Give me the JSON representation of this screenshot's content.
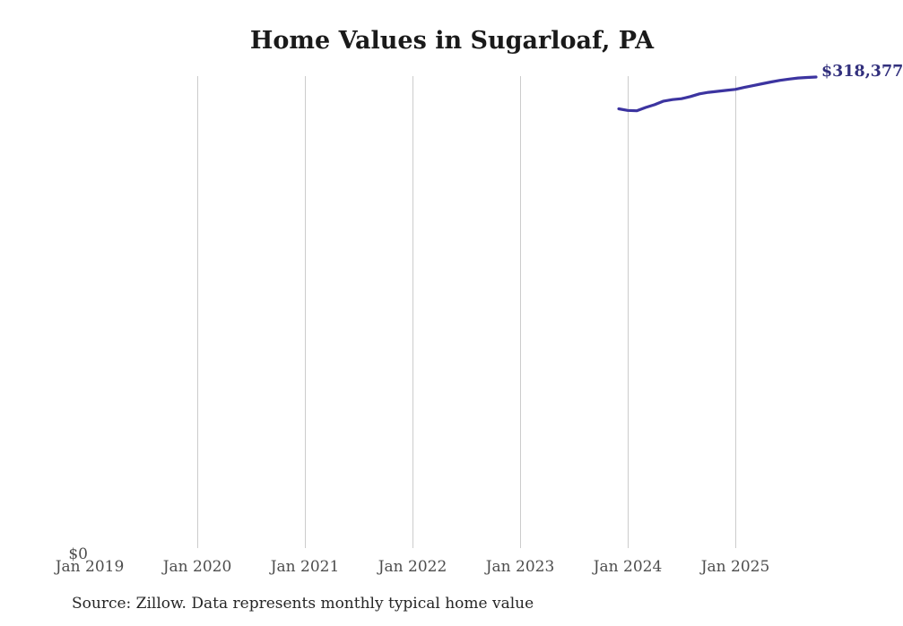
{
  "title": "Home Values in Sugarloaf, PA",
  "end_label": "$318,377",
  "y_axis": {
    "zero_label": "$0"
  },
  "x_axis": {
    "ticks": [
      "Jan 2019",
      "Jan 2020",
      "Jan 2021",
      "Jan 2022",
      "Jan 2023",
      "Jan 2024",
      "Jan 2025"
    ]
  },
  "source_note": "Source: Zillow. Data represents monthly typical home value",
  "colors": {
    "line": "#3c34a0",
    "value_label": "#32307d",
    "gridline": "#cccccc",
    "axis_text": "#4d4d4d",
    "title_text": "#1a1a1a",
    "source_text": "#262626"
  },
  "chart_data": {
    "type": "line",
    "title": "Home Values in Sugarloaf, PA",
    "xlabel": "",
    "ylabel": "",
    "x": [
      "Dec 2023",
      "Jan 2024",
      "Feb 2024",
      "Mar 2024",
      "Apr 2024",
      "May 2024",
      "Jun 2024",
      "Jul 2024",
      "Aug 2024",
      "Sep 2024",
      "Oct 2024",
      "Nov 2024",
      "Dec 2024",
      "Jan 2025",
      "Feb 2025",
      "Mar 2025",
      "Apr 2025",
      "May 2025",
      "Jun 2025",
      "Jul 2025",
      "Aug 2025",
      "Sep 2025",
      "Oct 2025"
    ],
    "values": [
      297300,
      296200,
      296000,
      298200,
      300000,
      302400,
      303400,
      304000,
      305400,
      307200,
      308200,
      308900,
      309500,
      310200,
      311500,
      312700,
      313900,
      315100,
      316200,
      317000,
      317700,
      318100,
      318377
    ],
    "last_point_label": "$318,377",
    "x_axis_ticks": [
      "Jan 2019",
      "Jan 2020",
      "Jan 2021",
      "Jan 2022",
      "Jan 2023",
      "Jan 2024",
      "Jan 2025"
    ],
    "ylim": [
      0,
      319000
    ],
    "y_tick_labels_visible": [
      "$0"
    ],
    "grid": "vertical-yearly-gridlines",
    "legend": "none"
  }
}
